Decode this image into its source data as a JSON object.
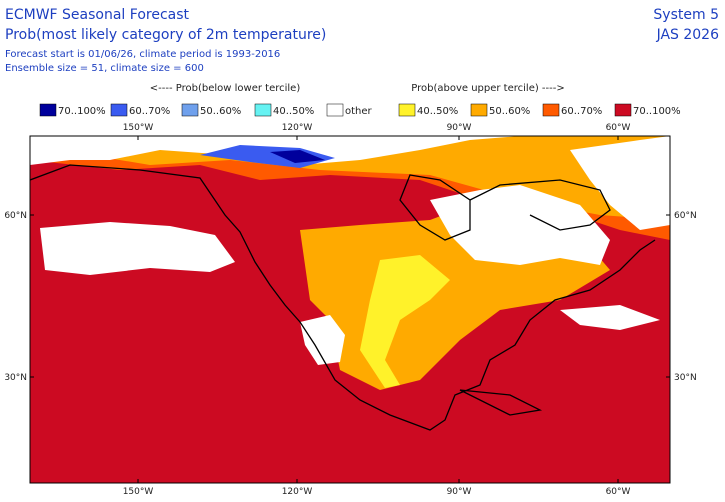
{
  "header": {
    "title": "ECMWF Seasonal Forecast",
    "subtitle": "Prob(most likely category of 2m temperature)",
    "info": [
      "Forecast start is 01/06/26, climate period is 1993-2016",
      "Ensemble size = 51, climate size = 600"
    ],
    "system": "System 5",
    "period": "JAS 2026"
  },
  "legend": {
    "below_heading": "<---- Prob(below lower tercile)",
    "above_heading": "Prob(above upper tercile) ---->",
    "items": [
      {
        "label": "70..100%",
        "color": "#00009c"
      },
      {
        "label": "60..70%",
        "color": "#3a5bf0"
      },
      {
        "label": "50..60%",
        "color": "#6fa0ec"
      },
      {
        "label": "40..50%",
        "color": "#66f2f2"
      },
      {
        "label": "other",
        "color": "#ffffff"
      },
      {
        "label": "40..50%",
        "color": "#fff22a"
      },
      {
        "label": "50..60%",
        "color": "#ffaa00"
      },
      {
        "label": "60..70%",
        "color": "#ff5a00"
      },
      {
        "label": "70..100%",
        "color": "#cc0a22"
      }
    ]
  },
  "map": {
    "lon_labels": [
      "150°W",
      "120°W",
      "90°W",
      "60°W"
    ],
    "lat_labels": [
      "60°N",
      "30°N"
    ]
  }
}
